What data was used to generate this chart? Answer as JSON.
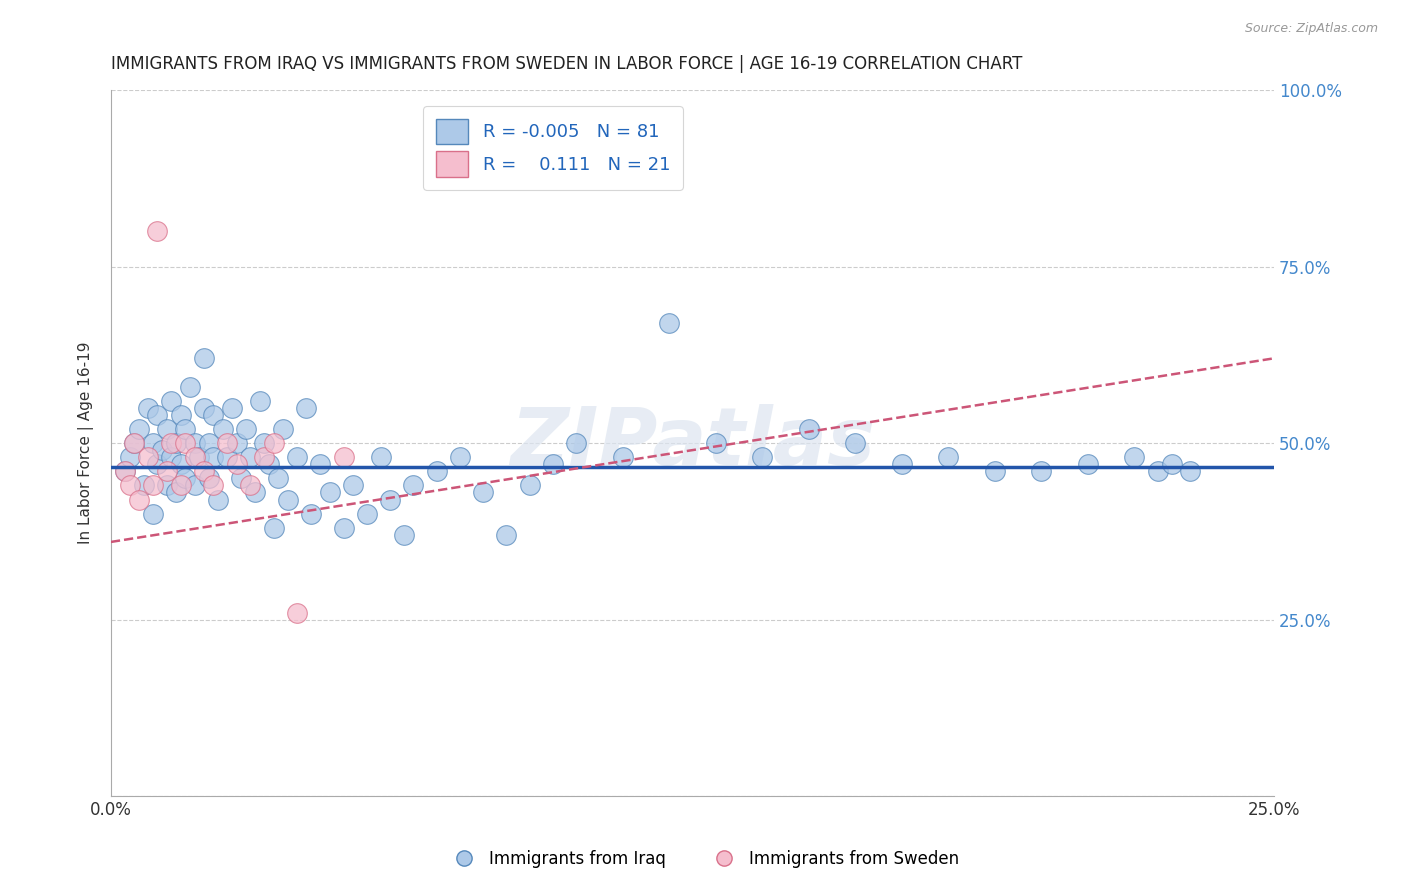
{
  "title": "IMMIGRANTS FROM IRAQ VS IMMIGRANTS FROM SWEDEN IN LABOR FORCE | AGE 16-19 CORRELATION CHART",
  "source": "Source: ZipAtlas.com",
  "ylabel": "In Labor Force | Age 16-19",
  "xlim": [
    0.0,
    0.25
  ],
  "ylim": [
    0.0,
    1.0
  ],
  "iraq_color": "#adc9e8",
  "iraq_edge_color": "#5588bb",
  "sweden_color": "#f5bece",
  "sweden_edge_color": "#d9708a",
  "iraq_line_color": "#2255aa",
  "sweden_line_color": "#cc5577",
  "background_color": "#ffffff",
  "grid_color": "#cccccc",
  "legend_R_iraq": "-0.005",
  "legend_N_iraq": "81",
  "legend_R_sweden": "0.111",
  "legend_N_sweden": "21",
  "watermark": "ZIPatlas",
  "iraq_trend_y0": 0.466,
  "iraq_trend_y1": 0.466,
  "sweden_trend_y0": 0.36,
  "sweden_trend_y1": 0.62,
  "iraq_x": [
    0.003,
    0.004,
    0.005,
    0.006,
    0.007,
    0.008,
    0.009,
    0.009,
    0.01,
    0.01,
    0.011,
    0.012,
    0.012,
    0.013,
    0.013,
    0.014,
    0.014,
    0.015,
    0.015,
    0.016,
    0.016,
    0.017,
    0.018,
    0.018,
    0.019,
    0.02,
    0.02,
    0.021,
    0.021,
    0.022,
    0.022,
    0.023,
    0.024,
    0.025,
    0.026,
    0.027,
    0.028,
    0.029,
    0.03,
    0.031,
    0.032,
    0.033,
    0.034,
    0.035,
    0.036,
    0.037,
    0.038,
    0.04,
    0.042,
    0.043,
    0.045,
    0.047,
    0.05,
    0.052,
    0.055,
    0.058,
    0.06,
    0.063,
    0.065,
    0.07,
    0.075,
    0.08,
    0.085,
    0.09,
    0.095,
    0.1,
    0.11,
    0.12,
    0.13,
    0.14,
    0.15,
    0.16,
    0.17,
    0.18,
    0.19,
    0.2,
    0.21,
    0.22,
    0.225,
    0.228,
    0.232
  ],
  "iraq_y": [
    0.46,
    0.48,
    0.5,
    0.52,
    0.44,
    0.55,
    0.4,
    0.5,
    0.47,
    0.54,
    0.49,
    0.52,
    0.44,
    0.48,
    0.56,
    0.5,
    0.43,
    0.54,
    0.47,
    0.52,
    0.45,
    0.58,
    0.5,
    0.44,
    0.48,
    0.62,
    0.55,
    0.5,
    0.45,
    0.54,
    0.48,
    0.42,
    0.52,
    0.48,
    0.55,
    0.5,
    0.45,
    0.52,
    0.48,
    0.43,
    0.56,
    0.5,
    0.47,
    0.38,
    0.45,
    0.52,
    0.42,
    0.48,
    0.55,
    0.4,
    0.47,
    0.43,
    0.38,
    0.44,
    0.4,
    0.48,
    0.42,
    0.37,
    0.44,
    0.46,
    0.48,
    0.43,
    0.37,
    0.44,
    0.47,
    0.5,
    0.48,
    0.67,
    0.5,
    0.48,
    0.52,
    0.5,
    0.47,
    0.48,
    0.46,
    0.46,
    0.47,
    0.48,
    0.46,
    0.47,
    0.46
  ],
  "sweden_x": [
    0.003,
    0.004,
    0.005,
    0.006,
    0.008,
    0.009,
    0.01,
    0.012,
    0.013,
    0.015,
    0.016,
    0.018,
    0.02,
    0.022,
    0.025,
    0.027,
    0.03,
    0.033,
    0.035,
    0.04,
    0.05
  ],
  "sweden_y": [
    0.46,
    0.44,
    0.5,
    0.42,
    0.48,
    0.44,
    0.8,
    0.46,
    0.5,
    0.44,
    0.5,
    0.48,
    0.46,
    0.44,
    0.5,
    0.47,
    0.44,
    0.48,
    0.5,
    0.26,
    0.48
  ]
}
